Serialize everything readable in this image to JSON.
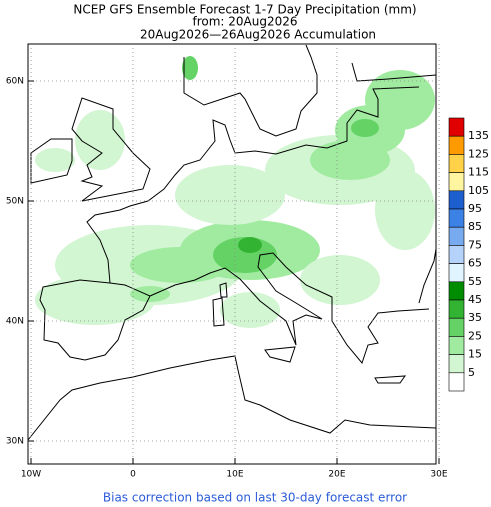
{
  "header": {
    "title": "NCEP GFS Ensemble Forecast 1-7 Day Precipitation (mm)",
    "subtitle": "from: 20Aug2026",
    "period": "20Aug2026—26Aug2026 Accumulation"
  },
  "map": {
    "lat_ticks": [
      {
        "value": 60,
        "label": "60N"
      },
      {
        "value": 50,
        "label": "50N"
      },
      {
        "value": 40,
        "label": "40N"
      },
      {
        "value": 30,
        "label": "30N"
      }
    ],
    "lon_ticks": [
      {
        "value": -10,
        "label": "10W"
      },
      0,
      {
        "value": 10,
        "label": "10E"
      },
      {
        "value": 20,
        "label": "20E"
      },
      {
        "value": 30,
        "label": "30E"
      }
    ]
  },
  "colorbar": {
    "levels": [
      135,
      125,
      115,
      105,
      95,
      85,
      75,
      65,
      55,
      45,
      35,
      25,
      15,
      5
    ],
    "colors": [
      "#e00000",
      "#ff9a00",
      "#ffd24a",
      "#fff5a0",
      "#1e5fd0",
      "#3c82e6",
      "#78aaf0",
      "#b4d2fa",
      "#e0f5ff",
      "#008c00",
      "#32b432",
      "#64d264",
      "#a0eba0",
      "#d2f5d2",
      "#ffffff"
    ]
  },
  "footer": {
    "note": "Bias correction based on last 30-day forecast error"
  }
}
